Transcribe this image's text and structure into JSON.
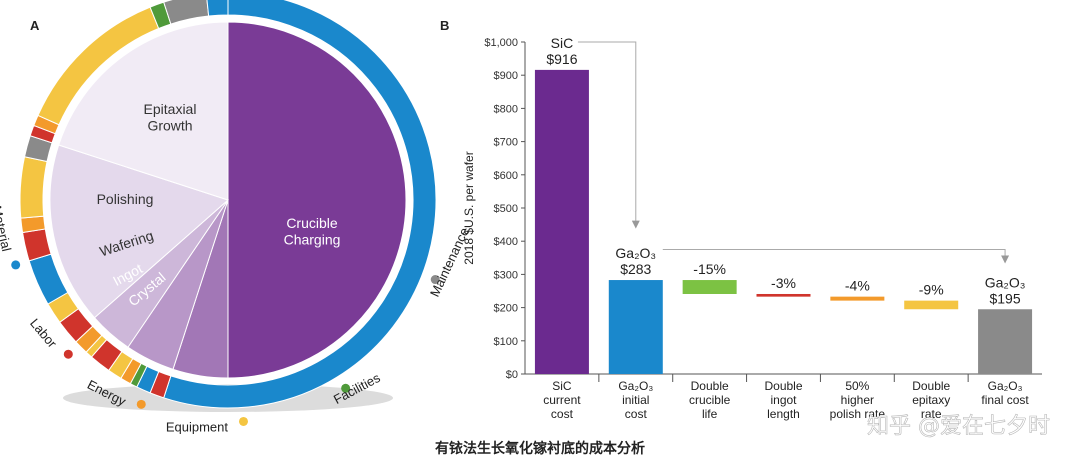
{
  "chart_data": [
    {
      "type": "pie",
      "panel_label": "A",
      "inner_segments": [
        {
          "label": "Crucible Charging",
          "value": 50.0,
          "color": "#7a3b96"
        },
        {
          "label": "Crystal",
          "value": 5.0,
          "color": "#a277b6"
        },
        {
          "label": "Ingot",
          "value": 4.5,
          "color": "#b897c8"
        },
        {
          "label": "Wafering",
          "value": 4.0,
          "color": "#cdb7d9"
        },
        {
          "label": "Polishing",
          "value": 16.5,
          "color": "#e4d9ec"
        },
        {
          "label": "Epitaxial Growth",
          "value": 20.0,
          "color": "#f1ebf5"
        }
      ],
      "outer_categories": [
        {
          "label": "Maintenance",
          "color": "#8a8a8a"
        },
        {
          "label": "Facilities",
          "color": "#4f9a3a"
        },
        {
          "label": "Equipment",
          "color": "#f4c542"
        },
        {
          "label": "Energy",
          "color": "#f39a2b"
        },
        {
          "label": "Labor",
          "color": "#d0342c"
        },
        {
          "label": "Material",
          "color": "#1a88cc"
        }
      ]
    },
    {
      "type": "bar",
      "subtype": "waterfall",
      "panel_label": "B",
      "ylabel": "2018 $U.S. per wafer",
      "ylim": [
        0,
        1000
      ],
      "yticks": [
        "$0",
        "$100",
        "$200",
        "$300",
        "$400",
        "$500",
        "$600",
        "$700",
        "$800",
        "$900",
        "$1,000"
      ],
      "categories": [
        [
          "SiC",
          "current",
          "cost"
        ],
        [
          "Ga₂O₃",
          "initial",
          "cost"
        ],
        [
          "Double",
          "crucible",
          "life"
        ],
        [
          "Double",
          "ingot",
          "length"
        ],
        [
          "50%",
          "higher",
          "polish rate"
        ],
        [
          "Double",
          "epitaxy",
          "rate"
        ],
        [
          "Ga₂O₃",
          "final cost"
        ]
      ],
      "bars": [
        {
          "start": 0,
          "end": 916,
          "color": "#6b2a8f",
          "label_top": "SiC",
          "label_bottom": "$916"
        },
        {
          "start": 0,
          "end": 283,
          "color": "#1a88cc",
          "label_top": "Ga₂O₃",
          "label_bottom": "$283"
        },
        {
          "start": 241,
          "end": 283,
          "color": "#7cc243",
          "label_top": "-15%",
          "label_bottom": ""
        },
        {
          "start": 233,
          "end": 241,
          "color": "#d0342c",
          "label_top": "-3%",
          "label_bottom": ""
        },
        {
          "start": 221,
          "end": 233,
          "color": "#f39a2b",
          "label_top": "-4%",
          "label_bottom": ""
        },
        {
          "start": 195,
          "end": 221,
          "color": "#f4c542",
          "label_top": "-9%",
          "label_bottom": ""
        },
        {
          "start": 0,
          "end": 195,
          "color": "#8a8a8a",
          "label_top": "Ga₂O₃",
          "label_bottom": "$195"
        }
      ]
    }
  ],
  "caption": "有铱法生长氧化镓衬底的成本分析",
  "watermark": "知乎 @爱在七夕时"
}
